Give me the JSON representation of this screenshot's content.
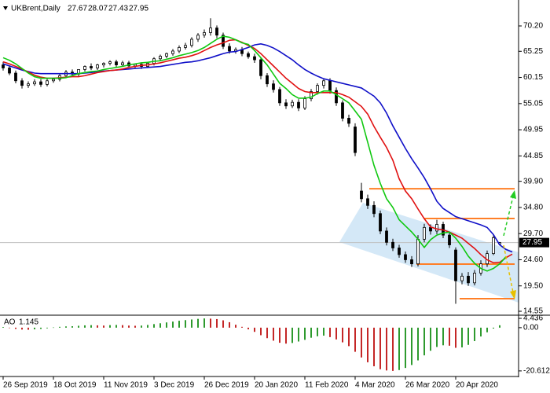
{
  "chart_data": [
    {
      "type": "candlestick",
      "title": "UKBrent,Daily",
      "categories": [
        "26 Sep 2019",
        null,
        null,
        null,
        null,
        null,
        null,
        null,
        "18 Oct 2019",
        null,
        null,
        null,
        null,
        null,
        null,
        null,
        "11 Nov 2019",
        null,
        null,
        null,
        null,
        null,
        null,
        null,
        "3 Dec 2019",
        null,
        null,
        null,
        null,
        null,
        null,
        null,
        "26 Dec 2019",
        null,
        null,
        null,
        null,
        null,
        null,
        null,
        "20 Jan 2020",
        null,
        null,
        null,
        null,
        null,
        null,
        null,
        "11 Feb 2020",
        null,
        null,
        null,
        null,
        null,
        null,
        null,
        "4 Mar 2020",
        null,
        null,
        null,
        null,
        null,
        null,
        null,
        "26 Mar 2020",
        null,
        null,
        null,
        null,
        null,
        null,
        null,
        "20 Apr 2020",
        null,
        null,
        null,
        null,
        null,
        null,
        null,
        null,
        null,
        null
      ],
      "open": [
        62.6,
        62.0,
        61.0,
        59.5,
        58.6,
        58.9,
        59.3,
        58.8,
        59.5,
        59.8,
        60.5,
        61.2,
        60.8,
        61.7,
        62.3,
        62.0,
        62.6,
        62.9,
        63.2,
        62.6,
        63.0,
        62.4,
        62.7,
        62.3,
        62.9,
        63.8,
        64.3,
        64.8,
        65.3,
        66.0,
        66.4,
        67.6,
        68.4,
        68.9,
        69.8,
        68.4,
        66.2,
        65.3,
        65.6,
        64.8,
        64.2,
        63.6,
        60.5,
        58.9,
        57.8,
        55.2,
        54.6,
        55.3,
        54.2,
        56.0,
        57.4,
        58.6,
        59.5,
        57.6,
        55.2,
        52.2,
        50.5,
        38.0,
        36.5,
        35.2,
        33.6,
        30.2,
        28.0,
        26.9,
        25.6,
        24.6,
        23.8,
        28.6,
        30.9,
        30.2,
        31.5,
        29.4,
        26.5,
        20.5,
        21.4,
        20.1,
        22.0,
        23.8,
        25.8,
        27.67,
        null,
        null,
        null
      ],
      "high": [
        63.2,
        62.5,
        61.5,
        60.0,
        59.4,
        59.8,
        59.8,
        59.9,
        60.1,
        60.9,
        61.6,
        61.7,
        61.4,
        62.5,
        62.9,
        62.8,
        63.1,
        63.5,
        63.6,
        63.4,
        63.4,
        62.9,
        63.1,
        63.2,
        64.1,
        64.6,
        65.0,
        65.7,
        66.4,
        66.9,
        68.0,
        68.8,
        69.5,
        71.7,
        70.3,
        68.9,
        66.8,
        66.0,
        66.1,
        65.2,
        64.8,
        64.1,
        61.0,
        59.6,
        58.3,
        55.9,
        55.8,
        55.9,
        56.5,
        57.9,
        59.0,
        60.0,
        60.0,
        58.2,
        55.7,
        52.9,
        51.2,
        39.6,
        37.3,
        36.0,
        34.2,
        30.9,
        28.7,
        27.5,
        26.2,
        25.3,
        29.4,
        31.6,
        31.5,
        32.4,
        32.0,
        30.1,
        27.0,
        22.0,
        22.2,
        22.6,
        24.5,
        26.4,
        29.6,
        28.07,
        null,
        null,
        null
      ],
      "low": [
        61.5,
        60.6,
        59.0,
        58.0,
        58.1,
        58.5,
        58.3,
        58.4,
        59.1,
        59.4,
        60.1,
        60.4,
        60.3,
        61.3,
        61.6,
        61.6,
        62.1,
        62.5,
        62.2,
        62.2,
        62.0,
        62.0,
        61.8,
        62.0,
        62.5,
        63.4,
        63.9,
        64.4,
        64.9,
        65.6,
        66.0,
        67.1,
        67.9,
        68.3,
        67.8,
        65.7,
        64.8,
        64.8,
        64.3,
        63.8,
        63.0,
        59.8,
        58.3,
        57.2,
        54.6,
        54.0,
        54.2,
        53.6,
        53.8,
        55.5,
        56.8,
        58.0,
        57.0,
        54.6,
        51.6,
        50.5,
        44.8,
        35.8,
        34.5,
        32.9,
        29.6,
        27.4,
        26.3,
        25.0,
        24.0,
        23.2,
        23.3,
        28.0,
        29.5,
        29.6,
        28.8,
        26.9,
        16.0,
        19.8,
        19.5,
        19.6,
        21.5,
        23.2,
        25.5,
        27.43,
        null,
        null,
        null
      ],
      "close": [
        62.0,
        61.0,
        59.5,
        58.6,
        58.9,
        59.3,
        58.8,
        59.5,
        59.8,
        60.5,
        61.2,
        60.8,
        61.7,
        62.3,
        62.0,
        62.6,
        62.9,
        63.2,
        62.6,
        63.0,
        62.4,
        62.7,
        62.3,
        62.9,
        63.8,
        64.3,
        64.8,
        65.3,
        66.0,
        66.4,
        67.6,
        68.4,
        68.9,
        69.8,
        68.4,
        66.2,
        65.3,
        65.6,
        64.8,
        64.2,
        63.6,
        60.5,
        58.9,
        57.8,
        55.2,
        54.6,
        55.3,
        54.2,
        56.0,
        57.4,
        58.6,
        59.5,
        57.6,
        55.2,
        52.2,
        51.2,
        45.5,
        36.5,
        35.2,
        33.6,
        30.2,
        28.0,
        26.9,
        25.6,
        24.6,
        23.8,
        28.6,
        30.9,
        30.2,
        31.5,
        29.4,
        27.5,
        20.5,
        21.4,
        20.1,
        22.0,
        23.8,
        25.8,
        28.9,
        27.95,
        null,
        null,
        null
      ],
      "bull_color": "#ffffff",
      "bear_color": "#000000",
      "series": [
        {
          "color": "#1010c8",
          "values": [
            62.8,
            62.4,
            62.0,
            61.6,
            61.3,
            61.0,
            60.9,
            60.9,
            60.9,
            60.9,
            60.9,
            60.9,
            60.9,
            61.0,
            61.1,
            61.3,
            61.4,
            61.5,
            61.6,
            61.7,
            61.8,
            61.9,
            62.0,
            62.1,
            62.2,
            62.3,
            62.5,
            62.7,
            62.9,
            63.1,
            63.2,
            63.4,
            63.7,
            64.0,
            64.4,
            64.8,
            65.1,
            65.2,
            65.6,
            66.0,
            66.5,
            66.7,
            66.4,
            65.9,
            65.2,
            64.4,
            63.6,
            62.6,
            61.7,
            61.0,
            60.4,
            59.9,
            59.6,
            59.3,
            59.0,
            58.7,
            58.4,
            58.1,
            57.3,
            56.5,
            55.2,
            53.2,
            50.7,
            48.5,
            46.3,
            44.3,
            42.5,
            40.6,
            38.4,
            36.0,
            34.6,
            33.8,
            33.0,
            32.6,
            32.2,
            31.8,
            31.4,
            30.9,
            29.5,
            27.5,
            26.6,
            26.1,
            null
          ]
        },
        {
          "color": "#e01010",
          "values": [
            63.2,
            62.8,
            62.3,
            61.8,
            61.2,
            60.6,
            60.2,
            60.0,
            60.0,
            60.1,
            60.2,
            60.3,
            60.3,
            60.5,
            60.8,
            61.1,
            61.3,
            61.5,
            61.6,
            61.8,
            62.1,
            62.3,
            62.5,
            62.6,
            62.8,
            63.0,
            63.3,
            63.6,
            63.9,
            64.1,
            64.4,
            64.8,
            65.4,
            66.0,
            66.5,
            66.9,
            67.4,
            67.5,
            67.0,
            66.4,
            65.8,
            64.8,
            63.6,
            62.4,
            61.2,
            60.0,
            59.0,
            58.0,
            57.4,
            57.2,
            57.2,
            57.2,
            57.2,
            57.2,
            56.8,
            56.3,
            55.4,
            54.5,
            53.0,
            50.6,
            48.5,
            46.5,
            44.0,
            40.4,
            38.0,
            36.5,
            34.5,
            32.6,
            31.0,
            30.6,
            30.4,
            30.0,
            29.4,
            28.8,
            27.8,
            26.8,
            25.6,
            24.6,
            24.0,
            24.1,
            25.0,
            25.7,
            null
          ]
        },
        {
          "color": "#10c810",
          "values": [
            64.0,
            63.5,
            62.8,
            61.9,
            61.0,
            60.3,
            60.0,
            60.0,
            60.0,
            60.0,
            60.1,
            60.5,
            60.9,
            61.1,
            61.3,
            61.4,
            61.7,
            61.9,
            62.1,
            62.3,
            62.6,
            62.8,
            63.0,
            63.1,
            63.3,
            63.4,
            63.7,
            64.0,
            64.4,
            64.7,
            65.0,
            65.4,
            66.0,
            66.8,
            67.6,
            68.2,
            68.0,
            67.5,
            66.9,
            66.6,
            65.4,
            64.0,
            62.6,
            60.8,
            59.0,
            58.0,
            56.8,
            56.1,
            56.1,
            56.3,
            57.0,
            57.5,
            57.5,
            56.8,
            56.0,
            55.2,
            53.6,
            52.0,
            47.5,
            43.0,
            39.5,
            36.5,
            34.8,
            32.4,
            31.2,
            30.0,
            28.6,
            27.0,
            28.5,
            29.4,
            29.8,
            30.0,
            28.8,
            27.2,
            25.3,
            23.9,
            22.9,
            22.4,
            22.9,
            23.8,
            25.2,
            null,
            null
          ]
        }
      ],
      "levels": [
        38.45,
        32.65,
        23.75,
        17.0
      ],
      "level_color": "#ff7f27",
      "price_line_color": "#c0c0c0",
      "ylim": [
        13.94,
        74.95
      ],
      "yticks": [
        {
          "value": 70.2,
          "label": "70.20"
        },
        65.25,
        60.15,
        55.05,
        49.95,
        44.85,
        {
          "value": 39.9,
          "label": "39.90"
        },
        {
          "value": 34.8,
          "label": "34.80"
        },
        {
          "value": 29.7,
          "label": "29.70"
        },
        {
          "value": 24.6,
          "label": "24.60"
        },
        {
          "value": 19.5,
          "label": "19.50"
        },
        14.55
      ]
    },
    {
      "type": "bar",
      "title": "AO",
      "values": [
        0.3,
        -0.2,
        -0.6,
        -0.9,
        -1.0,
        -0.8,
        -0.6,
        -0.3,
        0.1,
        0.4,
        0.6,
        0.7,
        0.9,
        1.1,
        1.2,
        1.1,
        1.0,
        1.2,
        1.3,
        1.2,
        1.0,
        0.9,
        1.0,
        1.3,
        1.7,
        2.1,
        2.5,
        2.9,
        3.3,
        3.6,
        3.9,
        4.2,
        4.4,
        4.3,
        4.1,
        3.5,
        2.6,
        1.4,
        0.4,
        -0.8,
        -2.0,
        -3.6,
        -5.0,
        -6.2,
        -7.2,
        -7.6,
        -7.3,
        -6.6,
        -5.8,
        -4.8,
        -4.1,
        -3.8,
        -4.5,
        -5.6,
        -7.0,
        -8.8,
        -11.5,
        -14.2,
        -16.5,
        -18.4,
        -19.8,
        -20.4,
        -20.6,
        -20.2,
        -19.2,
        -17.8,
        -15.6,
        -13.2,
        -11.0,
        -9.2,
        -8.4,
        -8.6,
        -9.6,
        -9.4,
        -8.2,
        -6.4,
        -4.2,
        -2.2,
        -0.4,
        1.145,
        null,
        null,
        null
      ],
      "up_color": "#2e9a2e",
      "down_color": "#c42727",
      "ylim": [
        -22.9,
        5.2
      ],
      "yticks": [
        4.436,
        {
          "value": 0,
          "label": "0.00"
        },
        -20.612
      ]
    }
  ]
}
